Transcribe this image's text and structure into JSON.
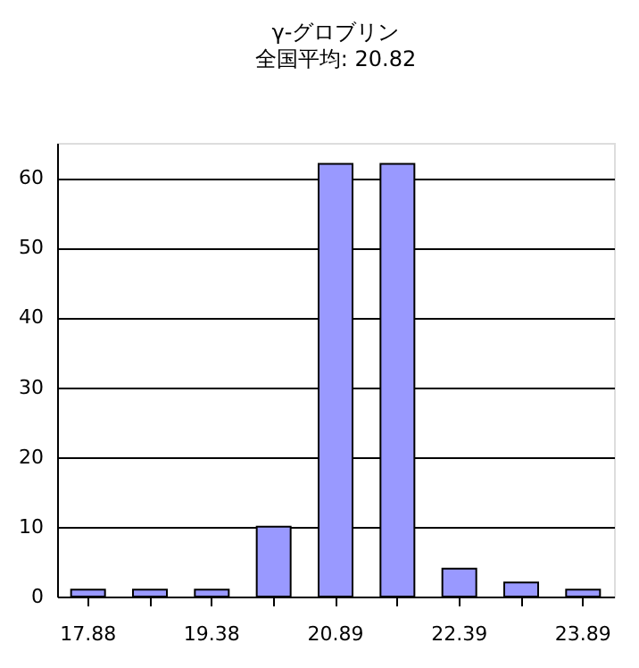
{
  "chart_data": {
    "type": "bar",
    "title": "γ-グロブリン",
    "subtitle": "全国平均: 20.82",
    "categories": [
      "17.88",
      null,
      "19.38",
      null,
      "20.89",
      null,
      "22.39",
      null,
      "23.89"
    ],
    "values": [
      1,
      1,
      1,
      10,
      62,
      62,
      4,
      2,
      1
    ],
    "color": "#9999ff",
    "ylim": [
      0,
      65
    ],
    "yticks": [
      0,
      10,
      20,
      30,
      40,
      50,
      60
    ],
    "grid": "y"
  }
}
